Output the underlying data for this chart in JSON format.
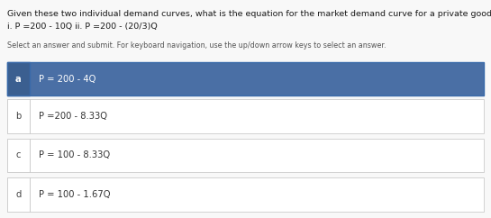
{
  "title_line1": "Given these two individual demand curves, what is the equation for the market demand curve for a private good?",
  "title_line2": "i. P =200 - 10Q ii. P =200 - (20/3)Q",
  "subtitle": "Select an answer and submit. For keyboard navigation, use the up/down arrow keys to select an answer.",
  "options": [
    {
      "label": "a",
      "text": "P = 200 - 4Q",
      "selected": true
    },
    {
      "label": "b",
      "text": "P =200 - 8.33Q",
      "selected": false
    },
    {
      "label": "c",
      "text": "P = 100 - 8.33Q",
      "selected": false
    },
    {
      "label": "d",
      "text": "P = 100 - 1.67Q",
      "selected": false
    }
  ],
  "selected_bg": "#4a6fa5",
  "selected_label_bg": "#3b5f90",
  "unselected_bg": "#ffffff",
  "border_color_selected": "#3a6aaa",
  "border_color_unselected": "#cccccc",
  "label_color_selected": "#ffffff",
  "label_color_unselected": "#444444",
  "text_color_selected": "#ffffff",
  "text_color_unselected": "#333333",
  "background_color": "#f8f8f8",
  "title_fontsize": 6.8,
  "subtitle_fontsize": 5.8,
  "option_fontsize": 7.2,
  "label_fontsize": 7.2
}
